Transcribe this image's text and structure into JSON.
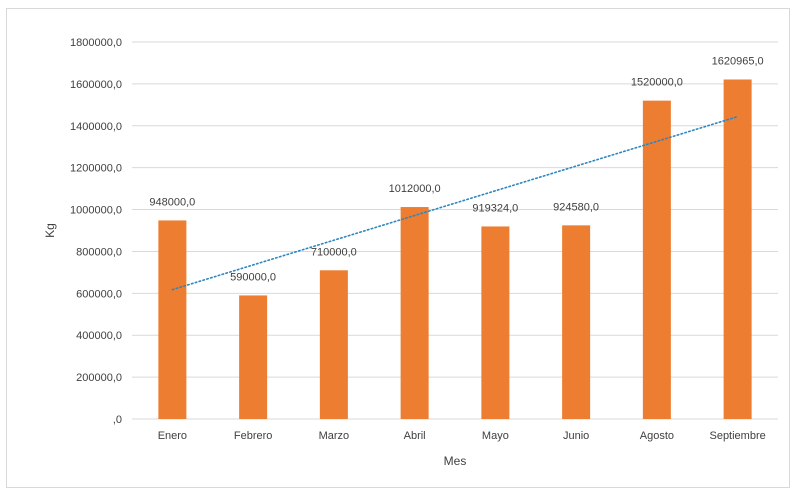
{
  "chart_data": {
    "type": "bar",
    "categories": [
      "Enero",
      "Febrero",
      "Marzo",
      "Abril",
      "Mayo",
      "Junio",
      "Agosto",
      "Septiembre"
    ],
    "values": [
      948000,
      590000,
      710000,
      1012000,
      919324,
      924580,
      1520000,
      1620965
    ],
    "data_labels": [
      "948000,0",
      "590000,0",
      "710000,0",
      "1012000,0",
      "919324,0",
      "924580,0",
      "1520000,0",
      "1620965,0"
    ],
    "xlabel": "Mes",
    "ylabel": "Kg",
    "ylim": [
      0,
      1800000
    ],
    "yticks": [
      0,
      200000,
      400000,
      600000,
      800000,
      1000000,
      1200000,
      1400000,
      1600000,
      1800000
    ],
    "ytick_labels": [
      ",0",
      "200000,0",
      "400000,0",
      "600000,0",
      "800000,0",
      "1000000,0",
      "1200000,0",
      "1400000,0",
      "1600000,0",
      "1800000,0"
    ],
    "grid": true,
    "legend": "none",
    "trendline": {
      "type": "linear",
      "style": "dotted",
      "color": "#2e86c1"
    },
    "bar_color": "#ed7d31"
  }
}
